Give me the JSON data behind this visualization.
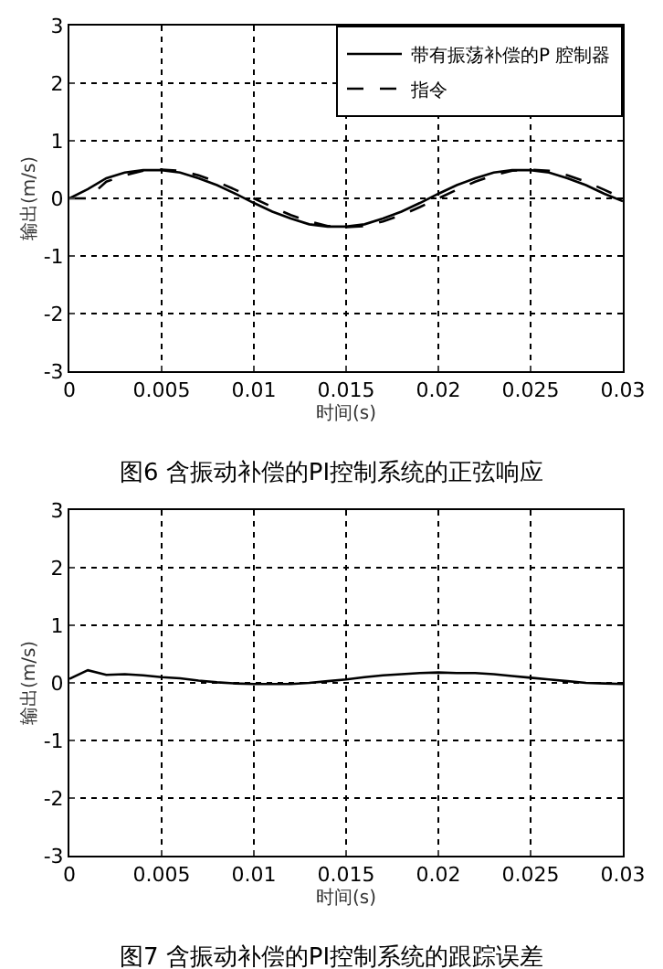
{
  "chart_data": [
    {
      "type": "line",
      "title": "图6 含振动补偿的PI控制系统的正弦响应",
      "xlabel": "时间(s)",
      "ylabel": "输出(m/s)",
      "x": [
        0,
        0.001,
        0.002,
        0.003,
        0.004,
        0.005,
        0.006,
        0.007,
        0.008,
        0.009,
        0.01,
        0.011,
        0.012,
        0.013,
        0.014,
        0.015,
        0.016,
        0.017,
        0.018,
        0.019,
        0.02,
        0.021,
        0.022,
        0.023,
        0.024,
        0.025,
        0.026,
        0.027,
        0.028,
        0.029,
        0.03
      ],
      "series": [
        {
          "name": "带有振荡补偿的P 腔制器",
          "color": "#000000",
          "line_style": "solid",
          "values": [
            0,
            0.16,
            0.35,
            0.45,
            0.49,
            0.49,
            0.45,
            0.35,
            0.23,
            0.08,
            -0.08,
            -0.23,
            -0.35,
            -0.45,
            -0.49,
            -0.49,
            -0.45,
            -0.35,
            -0.23,
            -0.08,
            0.08,
            0.23,
            0.35,
            0.45,
            0.49,
            0.49,
            0.45,
            0.35,
            0.23,
            0.08,
            -0.05
          ]
        },
        {
          "name": "指令",
          "color": "#000000",
          "line_style": "dashed",
          "values": [
            0,
            0,
            0.29,
            0.4,
            0.48,
            0.5,
            0.48,
            0.4,
            0.29,
            0.15,
            0,
            -0.15,
            -0.29,
            -0.4,
            -0.48,
            -0.5,
            -0.48,
            -0.4,
            -0.29,
            -0.15,
            0,
            0.15,
            0.29,
            0.4,
            0.48,
            0.5,
            0.48,
            0.4,
            0.29,
            0.15,
            0
          ]
        }
      ],
      "xlim": [
        0,
        0.03
      ],
      "ylim": [
        -3,
        3
      ],
      "xticks": [
        0,
        0.005,
        0.01,
        0.015,
        0.02,
        0.025,
        0.03
      ],
      "yticks": [
        -3,
        -2,
        -1,
        0,
        1,
        2,
        3
      ],
      "grid": true,
      "legend": "top right"
    },
    {
      "type": "line",
      "title": "图7 含振动补偿的PI控制系统的跟踪误差",
      "xlabel": "时间(s)",
      "ylabel": "输出(m/s)",
      "x": [
        0,
        0.001,
        0.002,
        0.003,
        0.004,
        0.005,
        0.006,
        0.007,
        0.008,
        0.009,
        0.01,
        0.011,
        0.012,
        0.013,
        0.014,
        0.015,
        0.016,
        0.017,
        0.018,
        0.019,
        0.02,
        0.021,
        0.022,
        0.023,
        0.024,
        0.025,
        0.026,
        0.027,
        0.028,
        0.029,
        0.03
      ],
      "series": [
        {
          "color": "#000000",
          "values": [
            0.07,
            0.22,
            0.14,
            0.15,
            0.13,
            0.1,
            0.08,
            0.04,
            0.01,
            -0.01,
            -0.02,
            -0.02,
            -0.02,
            0,
            0.03,
            0.06,
            0.1,
            0.13,
            0.15,
            0.17,
            0.18,
            0.17,
            0.17,
            0.15,
            0.12,
            0.09,
            0.06,
            0.03,
            0,
            -0.01,
            -0.02
          ]
        }
      ],
      "xlim": [
        0,
        0.03
      ],
      "ylim": [
        -3,
        3
      ],
      "xticks": [
        0,
        0.005,
        0.01,
        0.015,
        0.02,
        0.025,
        0.03
      ],
      "yticks": [
        -3,
        -2,
        -1,
        0,
        1,
        2,
        3
      ],
      "grid": true,
      "legend": false
    }
  ]
}
